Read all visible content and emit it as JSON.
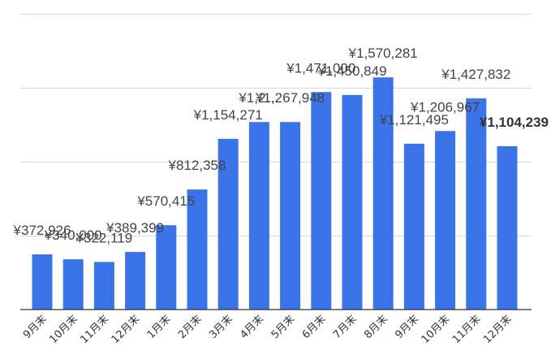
{
  "chart_data": {
    "type": "bar",
    "title": "",
    "xlabel": "",
    "ylabel": "",
    "ylim": [
      0,
      2000000
    ],
    "grid": true,
    "legend": "none",
    "categories": [
      "9月末",
      "10月末",
      "11月末",
      "12月末",
      "1月末",
      "2月末",
      "3月末",
      "4月末",
      "5月末",
      "6月末",
      "7月末",
      "8月末",
      "9月末",
      "10月末",
      "11月末",
      "12月末"
    ],
    "values": [
      372926,
      340000,
      322119,
      389399,
      570415,
      812358,
      1154271,
      1267948,
      1267948,
      1471000,
      1450849,
      1570281,
      1121495,
      1206967,
      1427832,
      1104239
    ],
    "labels": [
      "¥372,926",
      "¥340,000",
      "¥322,119",
      "¥389,399",
      "¥570,415",
      "¥812,358",
      "¥1,154,271",
      "¥1,2…",
      "¥1,267,948",
      "¥1,471,000",
      "¥1,450,849",
      "¥1,570,281",
      "¥1,121,495",
      "¥1,206,967",
      "¥1,427,832",
      "¥1,104,239"
    ],
    "highlight_index": 15,
    "bar_color": "#3b74e8"
  }
}
